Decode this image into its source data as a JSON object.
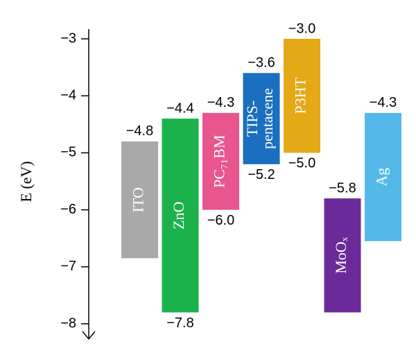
{
  "chart_data": {
    "type": "floating",
    "y_label": "E (eV)",
    "ylim": [
      -3,
      -8
    ],
    "yticks": [
      {
        "value": -3,
        "label": "−3"
      },
      {
        "value": -4,
        "label": "−4"
      },
      {
        "value": -5,
        "label": "−5"
      },
      {
        "value": -6,
        "label": "−6"
      },
      {
        "value": -7,
        "label": "−7"
      },
      {
        "value": -8,
        "label": "−8"
      }
    ],
    "bars": [
      {
        "label": "ITO",
        "color": "#a9a9a9",
        "top": -4.8,
        "bottom": -6.85,
        "top_label": "−4.8"
      },
      {
        "label": "ZnO",
        "color": "#1cb24b",
        "top": -4.4,
        "bottom": -7.8,
        "top_label": "−4.4",
        "bottom_label": "−7.8"
      },
      {
        "label": "PC₇₁BM",
        "color": "#e9558d",
        "top": -4.3,
        "bottom": -6.0,
        "top_label": "−4.3",
        "bottom_label": "−6.0"
      },
      {
        "label": [
          "TIPS-",
          "pentacene"
        ],
        "color": "#1a6fbf",
        "top": -3.6,
        "bottom": -5.2,
        "top_label": "−3.6",
        "bottom_label": "−5.2"
      },
      {
        "label": "P3HT",
        "color": "#e5a816",
        "top": -3.0,
        "bottom": -5.0,
        "top_label": "−3.0",
        "bottom_label": "−5.0"
      },
      {
        "label": "MoOₓ",
        "color": "#6b2a99",
        "top": -5.8,
        "bottom": -7.8,
        "top_label": "−5.8"
      },
      {
        "label": "Ag",
        "color": "#54b9e9",
        "top": -4.3,
        "bottom": -6.55,
        "top_label": "−4.3"
      }
    ]
  }
}
